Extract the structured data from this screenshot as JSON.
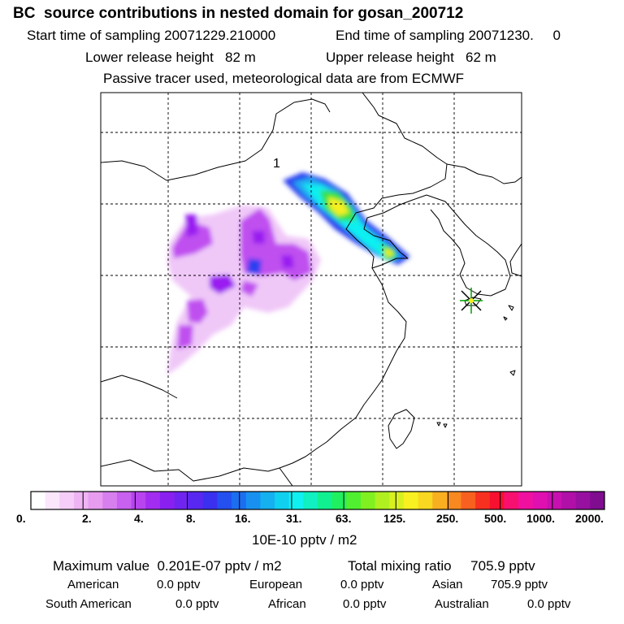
{
  "header": {
    "title": "BC  source contributions in nested domain for gosan_200712",
    "start_sampling": "Start time of sampling 20071229.210000",
    "end_sampling": "End time of sampling 20071230.     0",
    "lower_release": "Lower release height   82 m",
    "upper_release": "Upper release height   62 m",
    "tracer_note": "Passive tracer used, meteorological data are from ECMWF"
  },
  "map": {
    "marker_label": "1",
    "receptor_icon": "star-marker-icon",
    "plume_colors": {
      "light_violet": "#f0c8f8",
      "violet": "#c050f0",
      "purple": "#9a1cf0",
      "blue": "#2a40f0",
      "sky": "#20a8f0",
      "cyan": "#10f0f0",
      "green": "#30e040",
      "yellow": "#f4f020"
    }
  },
  "colorbar": {
    "unit": "10E-10 pptv / m2",
    "tick_labels": [
      "0.",
      "2.",
      "4.",
      "8.",
      "16.",
      "31.",
      "63.",
      "125.",
      "250.",
      "500.",
      "1000.",
      "2000."
    ],
    "colors": [
      "#ffffff",
      "#fbe6fc",
      "#f5cdf8",
      "#eeb4f4",
      "#e79cf0",
      "#d87ff0",
      "#c860f0",
      "#b844f0",
      "#a22cf0",
      "#8a20f0",
      "#7024f0",
      "#5828f0",
      "#3c30f0",
      "#2450f0",
      "#1c6ef0",
      "#1890f0",
      "#14b0f0",
      "#10d0f0",
      "#10f0f0",
      "#10f0c0",
      "#10f090",
      "#20f060",
      "#50f030",
      "#80f020",
      "#b0f020",
      "#d8f020",
      "#f8f020",
      "#f8d820",
      "#f8b020",
      "#f88820",
      "#f86020",
      "#f83020",
      "#f81030",
      "#f81070",
      "#f010a0",
      "#e010b0",
      "#c810b0",
      "#b010a8",
      "#9810a0",
      "#800c90"
    ]
  },
  "footer": {
    "max_value": "Maximum value  0.201E-07 pptv / m2",
    "total_mixing": "Total mixing ratio     705.9 pptv",
    "regions": [
      {
        "name": "American",
        "value": "0.0 pptv"
      },
      {
        "name": "European",
        "value": "0.0 pptv"
      },
      {
        "name": "Asian",
        "value": "705.9 pptv"
      },
      {
        "name": "South American",
        "value": "0.0 pptv"
      },
      {
        "name": "African",
        "value": "0.0 pptv"
      },
      {
        "name": "Australian",
        "value": "0.0 pptv"
      }
    ]
  }
}
